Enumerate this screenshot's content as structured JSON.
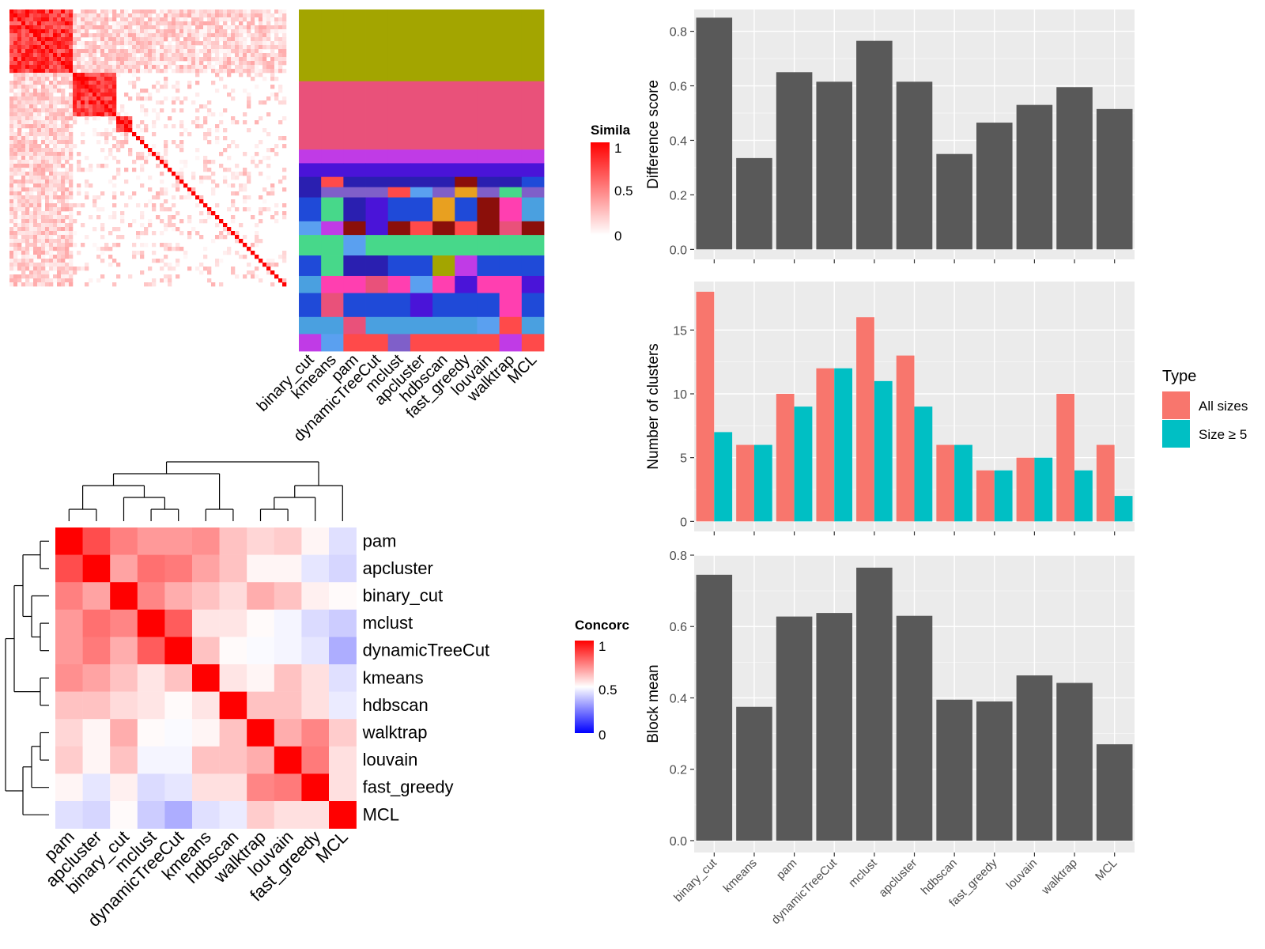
{
  "methods": [
    "binary_cut",
    "kmeans",
    "pam",
    "dynamicTreeCut",
    "mclust",
    "apcluster",
    "hdbscan",
    "fast_greedy",
    "louvain",
    "walktrap",
    "MCL"
  ],
  "similarity_panel": {
    "legend_title": "Simila",
    "legend_ticks": [
      "1",
      "0.5",
      "0"
    ],
    "colors": {
      "low": "#ffffff",
      "high": "#ff0000"
    },
    "partition_palette": [
      "#a3a500",
      "#e9517a",
      "#7f5fc9",
      "#c03be6",
      "#4a14d8",
      "#2a1fb0",
      "#1f4ad8",
      "#8b0f0a",
      "#47d88a",
      "#ff3fb0",
      "#4aa0e0",
      "#ff4a4a",
      "#5aa0f0",
      "#e8a020"
    ]
  },
  "concordance_panel": {
    "legend_title": "Concorc",
    "legend_ticks": [
      "1",
      "0.5",
      "0"
    ],
    "colors": {
      "low": "#0000ff",
      "mid": "#ffffff",
      "high": "#ff0000"
    },
    "order": [
      "pam",
      "apcluster",
      "binary_cut",
      "mclust",
      "dynamicTreeCut",
      "kmeans",
      "hdbscan",
      "walktrap",
      "louvain",
      "fast_greedy",
      "MCL"
    ]
  },
  "chart_data": [
    {
      "type": "heatmap",
      "name": "concordance",
      "rows": [
        "pam",
        "apcluster",
        "binary_cut",
        "mclust",
        "dynamicTreeCut",
        "kmeans",
        "hdbscan",
        "walktrap",
        "louvain",
        "fast_greedy",
        "MCL"
      ],
      "columns": [
        "pam",
        "apcluster",
        "binary_cut",
        "mclust",
        "dynamicTreeCut",
        "kmeans",
        "hdbscan",
        "walktrap",
        "louvain",
        "fast_greedy",
        "MCL"
      ],
      "values": [
        [
          1.0,
          0.85,
          0.75,
          0.7,
          0.7,
          0.72,
          0.62,
          0.58,
          0.6,
          0.52,
          0.44
        ],
        [
          0.85,
          1.0,
          0.68,
          0.78,
          0.76,
          0.68,
          0.62,
          0.52,
          0.52,
          0.45,
          0.42
        ],
        [
          0.75,
          0.68,
          1.0,
          0.74,
          0.66,
          0.62,
          0.57,
          0.66,
          0.62,
          0.53,
          0.51
        ],
        [
          0.7,
          0.78,
          0.74,
          1.0,
          0.82,
          0.55,
          0.55,
          0.51,
          0.48,
          0.43,
          0.4
        ],
        [
          0.7,
          0.76,
          0.66,
          0.82,
          1.0,
          0.62,
          0.51,
          0.49,
          0.48,
          0.45,
          0.34
        ],
        [
          0.72,
          0.68,
          0.62,
          0.55,
          0.62,
          1.0,
          0.55,
          0.52,
          0.62,
          0.56,
          0.44
        ],
        [
          0.62,
          0.62,
          0.57,
          0.55,
          0.51,
          0.55,
          1.0,
          0.62,
          0.62,
          0.56,
          0.46
        ],
        [
          0.58,
          0.52,
          0.66,
          0.51,
          0.49,
          0.52,
          0.62,
          1.0,
          0.66,
          0.74,
          0.6
        ],
        [
          0.6,
          0.52,
          0.62,
          0.48,
          0.48,
          0.62,
          0.62,
          0.66,
          1.0,
          0.76,
          0.56
        ],
        [
          0.52,
          0.45,
          0.53,
          0.43,
          0.45,
          0.56,
          0.56,
          0.74,
          0.76,
          1.0,
          0.56
        ],
        [
          0.44,
          0.42,
          0.51,
          0.4,
          0.34,
          0.44,
          0.46,
          0.6,
          0.56,
          0.56,
          1.0
        ]
      ],
      "scale": [
        0,
        0.5,
        1
      ]
    },
    {
      "type": "bar",
      "name": "difference",
      "categories": [
        "binary_cut",
        "kmeans",
        "pam",
        "dynamicTreeCut",
        "mclust",
        "apcluster",
        "hdbscan",
        "fast_greedy",
        "louvain",
        "walktrap",
        "MCL"
      ],
      "values": [
        0.85,
        0.335,
        0.65,
        0.615,
        0.765,
        0.615,
        0.35,
        0.465,
        0.53,
        0.595,
        0.515
      ],
      "ylabel": "Difference score",
      "ylim": [
        0,
        0.88
      ],
      "yticks": [
        0.0,
        0.2,
        0.4,
        0.6,
        0.8
      ],
      "ytick_labels": [
        "0.0",
        "0.2",
        "0.4",
        "0.6",
        "0.8"
      ],
      "grid": true
    },
    {
      "type": "bar",
      "name": "clusters",
      "categories": [
        "binary_cut",
        "kmeans",
        "pam",
        "dynamicTreeCut",
        "mclust",
        "apcluster",
        "hdbscan",
        "fast_greedy",
        "louvain",
        "walktrap",
        "MCL"
      ],
      "series": [
        {
          "name": "All sizes",
          "color": "#f8766d",
          "values": [
            18,
            6,
            10,
            12,
            16,
            13,
            6,
            4,
            5,
            10,
            6
          ]
        },
        {
          "name": "Size ≥ 5",
          "color": "#00bfc4",
          "values": [
            7,
            6,
            9,
            12,
            11,
            9,
            6,
            4,
            5,
            4,
            2
          ]
        }
      ],
      "ylabel": "Number of clusters",
      "ylim": [
        0,
        18.8
      ],
      "yticks": [
        0,
        5,
        10,
        15
      ],
      "ytick_labels": [
        "0",
        "5",
        "10",
        "15"
      ],
      "legend_title": "Type",
      "legend_position": "right",
      "grid": true
    },
    {
      "type": "bar",
      "name": "blockmean",
      "categories": [
        "binary_cut",
        "kmeans",
        "pam",
        "dynamicTreeCut",
        "mclust",
        "apcluster",
        "hdbscan",
        "fast_greedy",
        "louvain",
        "walktrap",
        "MCL"
      ],
      "values": [
        0.745,
        0.375,
        0.628,
        0.638,
        0.765,
        0.63,
        0.395,
        0.39,
        0.463,
        0.442,
        0.27
      ],
      "ylabel": "Block mean",
      "ylim": [
        0,
        0.8
      ],
      "yticks": [
        0.0,
        0.2,
        0.4,
        0.6,
        0.8
      ],
      "ytick_labels": [
        "0.0",
        "0.2",
        "0.4",
        "0.6",
        "0.8"
      ],
      "grid": true
    }
  ]
}
